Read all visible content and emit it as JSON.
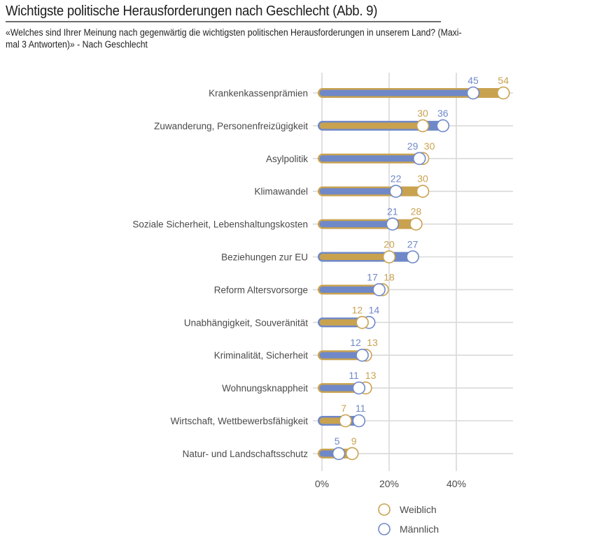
{
  "header": {
    "title": "Wichtigste politische Herausforderungen nach Geschlecht  (Abb. 9)",
    "subtitle_line1": "«Welches sind Ihrer Meinung nach gegenwärtig die wichtigsten politischen Herausforderungen in unserem Land? (Maxi-",
    "subtitle_line2": "mal 3 Antworten)» - Nach Geschlecht"
  },
  "colors": {
    "weiblich": "#c9a24f",
    "maennlich": "#6f88c8",
    "grid": "#d9d9d9",
    "text": "#4a4a4a"
  },
  "chart_data": {
    "type": "bar",
    "subtype": "dumbbell-overlay",
    "title": "Wichtigste politische Herausforderungen nach Geschlecht  (Abb. 9)",
    "xlabel": "",
    "ylabel": "",
    "xlim": [
      0,
      55
    ],
    "grid": true,
    "x_ticks": [
      0,
      20,
      40
    ],
    "x_tick_labels": [
      "0%",
      "20%",
      "40%"
    ],
    "legend_position": "bottom",
    "categories": [
      "Krankenkassenprämien",
      "Zuwanderung, Personenfreizügigkeit",
      "Asylpolitik",
      "Klimawandel",
      "Soziale Sicherheit, Lebenshaltungskosten",
      "Beziehungen zur EU",
      "Reform Altersvorsorge",
      "Unabhängigkeit, Souveränität",
      "Kriminalität, Sicherheit",
      "Wohnungsknappheit",
      "Wirtschaft, Wettbewerbsfähigkeit",
      "Natur- und Landschaftsschutz"
    ],
    "series": [
      {
        "name": "Weiblich",
        "key": "weiblich",
        "values": [
          54,
          30,
          30,
          30,
          28,
          20,
          18,
          12,
          13,
          13,
          7,
          9
        ]
      },
      {
        "name": "Männlich",
        "key": "maennlich",
        "values": [
          45,
          36,
          29,
          22,
          21,
          27,
          17,
          14,
          12,
          11,
          11,
          5
        ]
      }
    ]
  }
}
